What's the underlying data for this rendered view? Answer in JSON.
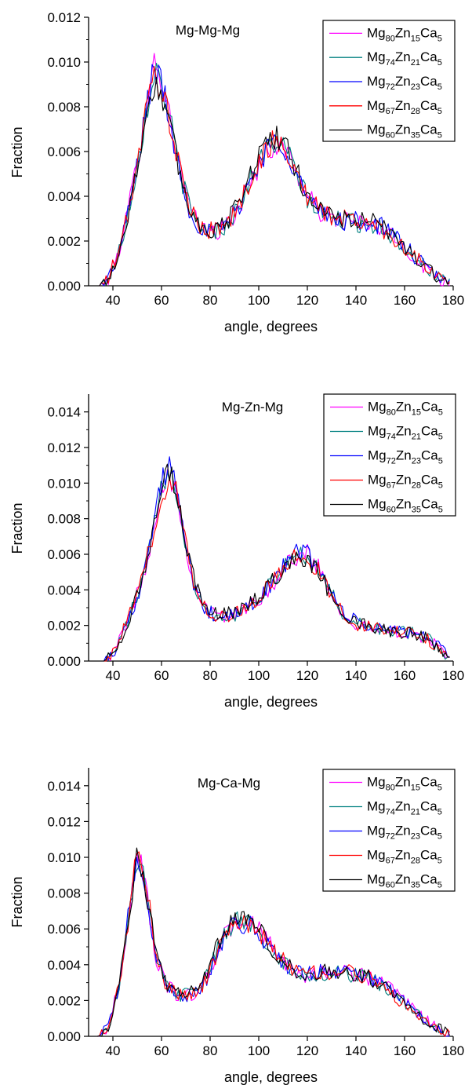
{
  "chart_data": [
    {
      "type": "line",
      "title": "Mg-Mg-Mg",
      "xlabel": "angle, degrees",
      "ylabel": "Fraction",
      "xlim": [
        30,
        180
      ],
      "ylim": [
        0,
        0.012
      ],
      "xticks": [
        40,
        60,
        80,
        100,
        120,
        140,
        160,
        180
      ],
      "yticks": [
        "0.000",
        "0.002",
        "0.004",
        "0.006",
        "0.008",
        "0.010",
        "0.012"
      ],
      "x": [
        30,
        35,
        38,
        42,
        46,
        50,
        54,
        57,
        60,
        64,
        68,
        72,
        76,
        80,
        84,
        88,
        92,
        96,
        100,
        104,
        108,
        112,
        116,
        120,
        125,
        130,
        135,
        140,
        145,
        150,
        155,
        160,
        165,
        170,
        175,
        179
      ],
      "series": [
        {
          "name": "Mg80Zn15Ca5",
          "label": {
            "base": "Mg",
            "n1": "80",
            "b2": "Zn",
            "n2": "15",
            "b3": "Ca",
            "n3": "5"
          },
          "color": "#ff00ff",
          "values": [
            0,
            0,
            0.0003,
            0.0014,
            0.0032,
            0.0055,
            0.0082,
            0.01,
            0.0093,
            0.0072,
            0.005,
            0.0033,
            0.0026,
            0.0024,
            0.0025,
            0.0028,
            0.0035,
            0.0045,
            0.0054,
            0.0061,
            0.0063,
            0.006,
            0.005,
            0.004,
            0.0033,
            0.003,
            0.0029,
            0.0028,
            0.0027,
            0.0026,
            0.0022,
            0.0017,
            0.0011,
            0.0007,
            0.0003,
            0
          ]
        },
        {
          "name": "Mg74Zn21Ca5",
          "label": {
            "base": "Mg",
            "n1": "74",
            "b2": "Zn",
            "n2": "21",
            "b3": "Ca",
            "n3": "5"
          },
          "color": "#008080",
          "values": [
            0,
            0,
            0.0003,
            0.0013,
            0.0031,
            0.0054,
            0.008,
            0.0097,
            0.0092,
            0.0071,
            0.0049,
            0.0033,
            0.0026,
            0.0024,
            0.0025,
            0.0029,
            0.0036,
            0.0046,
            0.0055,
            0.0062,
            0.0064,
            0.0059,
            0.0049,
            0.0039,
            0.0033,
            0.003,
            0.0029,
            0.0028,
            0.0028,
            0.0026,
            0.0022,
            0.0017,
            0.0012,
            0.0007,
            0.0003,
            0
          ]
        },
        {
          "name": "Mg72Zn23Ca5",
          "label": {
            "base": "Mg",
            "n1": "72",
            "b2": "Zn",
            "n2": "23",
            "b3": "Ca",
            "n3": "5"
          },
          "color": "#0000ff",
          "values": [
            0,
            0,
            0.0003,
            0.0013,
            0.0031,
            0.0054,
            0.0081,
            0.0098,
            0.0091,
            0.007,
            0.0049,
            0.0032,
            0.0026,
            0.0024,
            0.0025,
            0.0029,
            0.0036,
            0.0046,
            0.0055,
            0.0062,
            0.0065,
            0.006,
            0.0049,
            0.0039,
            0.0033,
            0.003,
            0.0029,
            0.0029,
            0.0028,
            0.0027,
            0.0023,
            0.0018,
            0.0012,
            0.0007,
            0.0003,
            0
          ]
        },
        {
          "name": "Mg67Zn28Ca5",
          "label": {
            "base": "Mg",
            "n1": "67",
            "b2": "Zn",
            "n2": "28",
            "b3": "Ca",
            "n3": "5"
          },
          "color": "#ff0000",
          "values": [
            0,
            0,
            0.0003,
            0.0014,
            0.0031,
            0.0054,
            0.008,
            0.0094,
            0.009,
            0.007,
            0.0049,
            0.0033,
            0.0026,
            0.0025,
            0.0026,
            0.0029,
            0.0036,
            0.0046,
            0.0055,
            0.0063,
            0.0064,
            0.0059,
            0.0049,
            0.004,
            0.0034,
            0.0031,
            0.003,
            0.0029,
            0.0028,
            0.0026,
            0.0022,
            0.0017,
            0.0012,
            0.0007,
            0.0003,
            0
          ]
        },
        {
          "name": "Mg60Zn35Ca5",
          "label": {
            "base": "Mg",
            "n1": "60",
            "b2": "Zn",
            "n2": "35",
            "b3": "Ca",
            "n3": "5"
          },
          "color": "#000000",
          "values": [
            0,
            0,
            0.0003,
            0.0013,
            0.003,
            0.0053,
            0.0078,
            0.009,
            0.0086,
            0.0068,
            0.0049,
            0.0033,
            0.0027,
            0.0025,
            0.0027,
            0.003,
            0.0038,
            0.0049,
            0.0058,
            0.0066,
            0.0066,
            0.006,
            0.005,
            0.0041,
            0.0035,
            0.0031,
            0.003,
            0.0029,
            0.0029,
            0.0027,
            0.0023,
            0.0018,
            0.0012,
            0.0007,
            0.0003,
            0
          ]
        }
      ]
    },
    {
      "type": "line",
      "title": "Mg-Zn-Mg",
      "xlabel": "angle, degrees",
      "ylabel": "Fraction",
      "xlim": [
        30,
        180
      ],
      "ylim": [
        0,
        0.015
      ],
      "xticks": [
        40,
        60,
        80,
        100,
        120,
        140,
        160,
        180
      ],
      "yticks": [
        "0.000",
        "0.002",
        "0.004",
        "0.006",
        "0.008",
        "0.010",
        "0.012",
        "0.014"
      ],
      "x": [
        30,
        36,
        40,
        44,
        48,
        52,
        56,
        60,
        63,
        66,
        70,
        74,
        78,
        82,
        86,
        90,
        95,
        100,
        105,
        110,
        115,
        120,
        125,
        130,
        135,
        140,
        145,
        150,
        155,
        160,
        165,
        170,
        175,
        179
      ],
      "series": [
        {
          "name": "Mg80Zn15Ca5",
          "label": {
            "base": "Mg",
            "n1": "80",
            "b2": "Zn",
            "n2": "15",
            "b3": "Ca",
            "n3": "5"
          },
          "color": "#ff00ff",
          "values": [
            0,
            0,
            0.0004,
            0.0016,
            0.003,
            0.0045,
            0.007,
            0.0098,
            0.0108,
            0.0095,
            0.0065,
            0.004,
            0.003,
            0.0026,
            0.0025,
            0.0026,
            0.003,
            0.0035,
            0.0042,
            0.0051,
            0.0059,
            0.006,
            0.0052,
            0.0038,
            0.0026,
            0.0021,
            0.0019,
            0.0017,
            0.0016,
            0.0016,
            0.0015,
            0.0012,
            0.0006,
            0
          ]
        },
        {
          "name": "Mg74Zn21Ca5",
          "label": {
            "base": "Mg",
            "n1": "74",
            "b2": "Zn",
            "n2": "21",
            "b3": "Ca",
            "n3": "5"
          },
          "color": "#008080",
          "values": [
            0,
            0,
            0.0004,
            0.0015,
            0.0029,
            0.0044,
            0.0069,
            0.0096,
            0.011,
            0.0098,
            0.0067,
            0.0041,
            0.003,
            0.0026,
            0.0025,
            0.0026,
            0.003,
            0.0036,
            0.0043,
            0.0052,
            0.006,
            0.006,
            0.0051,
            0.0037,
            0.0026,
            0.0021,
            0.0019,
            0.0018,
            0.0017,
            0.0016,
            0.0015,
            0.0012,
            0.0006,
            0
          ]
        },
        {
          "name": "Mg72Zn23Ca5",
          "label": {
            "base": "Mg",
            "n1": "72",
            "b2": "Zn",
            "n2": "23",
            "b3": "Ca",
            "n3": "5"
          },
          "color": "#0000ff",
          "values": [
            0,
            0,
            0.0004,
            0.0015,
            0.0029,
            0.0045,
            0.0071,
            0.01,
            0.0112,
            0.0096,
            0.0064,
            0.0039,
            0.0029,
            0.0025,
            0.0024,
            0.0026,
            0.003,
            0.0036,
            0.0043,
            0.0052,
            0.0061,
            0.0061,
            0.0052,
            0.0038,
            0.0027,
            0.0022,
            0.0019,
            0.0018,
            0.0017,
            0.0017,
            0.0016,
            0.0013,
            0.0007,
            0
          ]
        },
        {
          "name": "Mg67Zn28Ca5",
          "label": {
            "base": "Mg",
            "n1": "67",
            "b2": "Zn",
            "n2": "28",
            "b3": "Ca",
            "n3": "5"
          },
          "color": "#ff0000",
          "values": [
            0,
            0,
            0.0004,
            0.0016,
            0.003,
            0.0045,
            0.0069,
            0.0092,
            0.0104,
            0.0095,
            0.0066,
            0.0041,
            0.003,
            0.0026,
            0.0025,
            0.0026,
            0.0031,
            0.0036,
            0.0043,
            0.0052,
            0.0058,
            0.0058,
            0.005,
            0.0037,
            0.0026,
            0.0021,
            0.0019,
            0.0018,
            0.0017,
            0.0016,
            0.0015,
            0.0012,
            0.0006,
            0
          ]
        },
        {
          "name": "Mg60Zn35Ca5",
          "label": {
            "base": "Mg",
            "n1": "60",
            "b2": "Zn",
            "n2": "35",
            "b3": "Ca",
            "n3": "5"
          },
          "color": "#000000",
          "values": [
            0,
            0,
            0.0004,
            0.0015,
            0.0029,
            0.0044,
            0.0068,
            0.0094,
            0.0106,
            0.0096,
            0.0067,
            0.0042,
            0.0031,
            0.0027,
            0.0026,
            0.0027,
            0.0031,
            0.0037,
            0.0044,
            0.0052,
            0.0058,
            0.0057,
            0.0049,
            0.0037,
            0.0027,
            0.0022,
            0.002,
            0.0018,
            0.0017,
            0.0016,
            0.0015,
            0.0012,
            0.0006,
            0
          ]
        }
      ]
    },
    {
      "type": "line",
      "title": "Mg-Ca-Mg",
      "xlabel": "angle, degrees",
      "ylabel": "Fraction",
      "xlim": [
        30,
        180
      ],
      "ylim": [
        0,
        0.015
      ],
      "xticks": [
        40,
        60,
        80,
        100,
        120,
        140,
        160,
        180
      ],
      "yticks": [
        "0.000",
        "0.002",
        "0.004",
        "0.006",
        "0.008",
        "0.010",
        "0.012",
        "0.014"
      ],
      "x": [
        30,
        34,
        38,
        42,
        45,
        48,
        50,
        52,
        55,
        58,
        62,
        66,
        70,
        74,
        78,
        82,
        86,
        90,
        95,
        100,
        105,
        110,
        115,
        120,
        125,
        130,
        135,
        140,
        145,
        150,
        155,
        160,
        165,
        170,
        175,
        179
      ],
      "series": [
        {
          "name": "Mg80Zn15Ca5",
          "label": {
            "base": "Mg",
            "n1": "80",
            "b2": "Zn",
            "n2": "15",
            "b3": "Ca",
            "n3": "5"
          },
          "color": "#ff00ff",
          "values": [
            0,
            0,
            0.0005,
            0.0025,
            0.005,
            0.0082,
            0.0105,
            0.0095,
            0.007,
            0.0042,
            0.0028,
            0.0024,
            0.0023,
            0.0024,
            0.003,
            0.0044,
            0.0056,
            0.0063,
            0.0065,
            0.006,
            0.005,
            0.0042,
            0.0036,
            0.0034,
            0.0035,
            0.0036,
            0.0036,
            0.0035,
            0.0033,
            0.003,
            0.0025,
            0.0019,
            0.0013,
            0.0008,
            0.0004,
            0
          ]
        },
        {
          "name": "Mg74Zn21Ca5",
          "label": {
            "base": "Mg",
            "n1": "74",
            "b2": "Zn",
            "n2": "21",
            "b3": "Ca",
            "n3": "5"
          },
          "color": "#008080",
          "values": [
            0,
            0,
            0.0005,
            0.0024,
            0.0049,
            0.008,
            0.0102,
            0.0093,
            0.0069,
            0.0042,
            0.0028,
            0.0024,
            0.0023,
            0.0025,
            0.0031,
            0.0045,
            0.0057,
            0.0064,
            0.0064,
            0.0059,
            0.0049,
            0.0041,
            0.0036,
            0.0034,
            0.0035,
            0.0035,
            0.0035,
            0.0034,
            0.0032,
            0.0029,
            0.0024,
            0.0018,
            0.0012,
            0.0007,
            0.0004,
            0
          ]
        },
        {
          "name": "Mg72Zn23Ca5",
          "label": {
            "base": "Mg",
            "n1": "72",
            "b2": "Zn",
            "n2": "23",
            "b3": "Ca",
            "n3": "5"
          },
          "color": "#0000ff",
          "values": [
            0,
            0,
            0.0005,
            0.0026,
            0.0052,
            0.0085,
            0.01,
            0.009,
            0.0068,
            0.0041,
            0.0028,
            0.0024,
            0.0023,
            0.0024,
            0.003,
            0.0044,
            0.0056,
            0.0062,
            0.0063,
            0.0058,
            0.0049,
            0.0041,
            0.0036,
            0.0035,
            0.0036,
            0.0037,
            0.0037,
            0.0036,
            0.0033,
            0.003,
            0.0025,
            0.0019,
            0.0013,
            0.0008,
            0.0004,
            0
          ]
        },
        {
          "name": "Mg67Zn28Ca5",
          "label": {
            "base": "Mg",
            "n1": "67",
            "b2": "Zn",
            "n2": "28",
            "b3": "Ca",
            "n3": "5"
          },
          "color": "#ff0000",
          "values": [
            0,
            0,
            0.0005,
            0.0025,
            0.005,
            0.008,
            0.011,
            0.0098,
            0.0072,
            0.0043,
            0.0028,
            0.0024,
            0.0023,
            0.0024,
            0.003,
            0.0044,
            0.0055,
            0.0061,
            0.0063,
            0.0058,
            0.0049,
            0.0042,
            0.0037,
            0.0035,
            0.0036,
            0.0036,
            0.0036,
            0.0035,
            0.0033,
            0.0029,
            0.0024,
            0.0018,
            0.0012,
            0.0007,
            0.0004,
            0
          ]
        },
        {
          "name": "Mg60Zn35Ca5",
          "label": {
            "base": "Mg",
            "n1": "60",
            "b2": "Zn",
            "n2": "35",
            "b3": "Ca",
            "n3": "5"
          },
          "color": "#000000",
          "values": [
            0,
            0,
            0.0005,
            0.0024,
            0.0049,
            0.0082,
            0.0104,
            0.0094,
            0.0071,
            0.0044,
            0.0029,
            0.0025,
            0.0024,
            0.0026,
            0.0032,
            0.0047,
            0.0059,
            0.0066,
            0.0066,
            0.006,
            0.005,
            0.0042,
            0.0037,
            0.0035,
            0.0036,
            0.0036,
            0.0036,
            0.0035,
            0.0033,
            0.0029,
            0.0024,
            0.0018,
            0.0012,
            0.0007,
            0.0004,
            0
          ]
        }
      ]
    }
  ]
}
